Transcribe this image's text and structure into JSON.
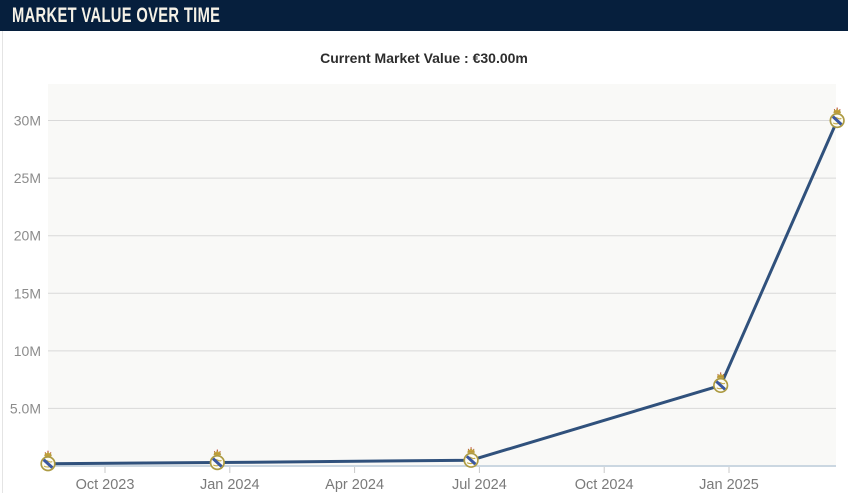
{
  "header": {
    "title": "MARKET VALUE OVER TIME"
  },
  "summary": {
    "current_market_value_text": "Current Market Value : €30.00m"
  },
  "chart_data": {
    "type": "line",
    "title": "MARKET VALUE OVER TIME",
    "subtitle": "Current Market Value : €30.00m",
    "unit": "EUR million",
    "current_market_value_eur_m": 30.0,
    "x_axis": {
      "ticks": [
        {
          "label": "Oct 2023",
          "m": 2
        },
        {
          "label": "Jan 2024",
          "m": 5
        },
        {
          "label": "Apr 2024",
          "m": 8
        },
        {
          "label": "Jul 2024",
          "m": 11
        },
        {
          "label": "Oct 2024",
          "m": 14
        },
        {
          "label": "Jan 2025",
          "m": 17
        }
      ],
      "m_origin": "Aug 2023",
      "range_months": [
        0.4,
        19.7
      ]
    },
    "y_axis": {
      "ticks": [
        {
          "label": "5.0M",
          "value": 5
        },
        {
          "label": "10M",
          "value": 10
        },
        {
          "label": "15M",
          "value": 15
        },
        {
          "label": "20M",
          "value": 20
        },
        {
          "label": "25M",
          "value": 25
        },
        {
          "label": "30M",
          "value": 30
        }
      ],
      "range": [
        0,
        33.2
      ],
      "grid": "horizontal-only"
    },
    "legend": "none",
    "series": [
      {
        "name": "Market value",
        "color": "#30517c",
        "marker_icon": "real-madrid-crest-icon",
        "points": [
          {
            "date": "Sep 2023",
            "t_months": 0.63,
            "value": 0.2
          },
          {
            "date": "Dec 2023",
            "t_months": 4.7,
            "value": 0.3
          },
          {
            "date": "Jun 2024",
            "t_months": 10.8,
            "value": 0.5
          },
          {
            "date": "Dec 2024",
            "t_months": 16.8,
            "value": 7.0
          },
          {
            "date": "Mar 2025",
            "t_months": 19.6,
            "value": 30.0
          }
        ]
      }
    ],
    "colors": {
      "header_bg": "#061f3d",
      "header_text": "#f6f2e7",
      "plot_bg": "#f9f9f7",
      "grid": "#d9d9d9",
      "axis_line": "#cbd7e1",
      "tick": "#c9c9c9",
      "line": "#30517c",
      "crest_gold": "#b09c42",
      "crest_blue": "#3a57a0",
      "crest_red": "#c0392b"
    }
  }
}
